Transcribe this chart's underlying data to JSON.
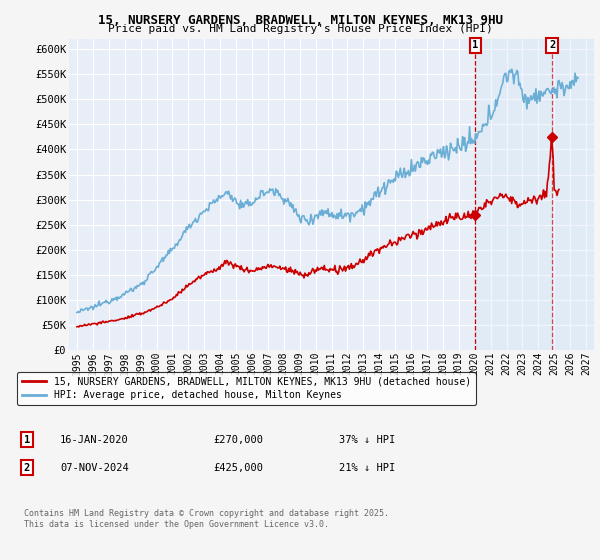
{
  "title": "15, NURSERY GARDENS, BRADWELL, MILTON KEYNES, MK13 9HU",
  "subtitle": "Price paid vs. HM Land Registry's House Price Index (HPI)",
  "ylim": [
    0,
    620000
  ],
  "yticks": [
    0,
    50000,
    100000,
    150000,
    200000,
    250000,
    300000,
    350000,
    400000,
    450000,
    500000,
    550000,
    600000
  ],
  "ytick_labels": [
    "£0",
    "£50K",
    "£100K",
    "£150K",
    "£200K",
    "£250K",
    "£300K",
    "£350K",
    "£400K",
    "£450K",
    "£500K",
    "£550K",
    "£600K"
  ],
  "hpi_color": "#6aaed6",
  "price_color": "#cc0000",
  "marker_color": "#cc0000",
  "shade_color": "#d6e8f5",
  "annotation1": {
    "label": "1",
    "date": "16-JAN-2020",
    "price": "£270,000",
    "pct": "37% ↓ HPI",
    "x_year": 2020.04,
    "y_val": 270000
  },
  "annotation2": {
    "label": "2",
    "date": "07-NOV-2024",
    "price": "£425,000",
    "pct": "21% ↓ HPI",
    "x_year": 2024.86,
    "y_val": 425000
  },
  "legend_price": "15, NURSERY GARDENS, BRADWELL, MILTON KEYNES, MK13 9HU (detached house)",
  "legend_hpi": "HPI: Average price, detached house, Milton Keynes",
  "footer1": "Contains HM Land Registry data © Crown copyright and database right 2025.",
  "footer2": "This data is licensed under the Open Government Licence v3.0.",
  "bg_color": "#f5f5f5",
  "plot_bg_color": "#e8eef8",
  "grid_color": "#ffffff",
  "hpi_linewidth": 1.2,
  "price_linewidth": 1.2,
  "xlim": [
    1994.5,
    2027.5
  ],
  "xtick_start": 1995,
  "xtick_end": 2027
}
